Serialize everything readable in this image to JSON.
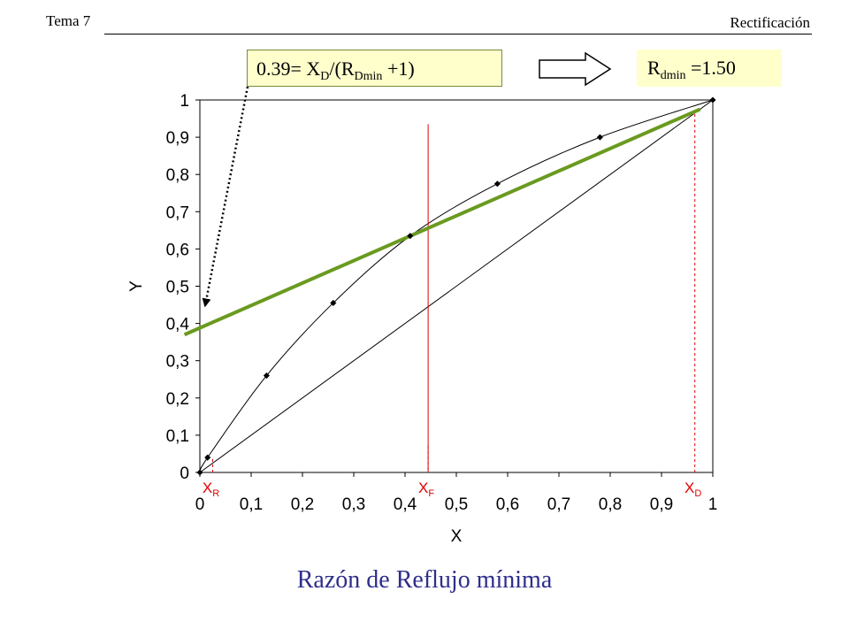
{
  "header": {
    "topic": "Tema 7",
    "section": "Rectificación"
  },
  "formula": {
    "prefix": "0.39= X",
    "sub1": "D",
    "mid": "/(R",
    "sub2": "Dmin",
    "suffix": " +1)"
  },
  "result": {
    "prefix": "R",
    "sub": "dmin",
    "suffix": " =1.50"
  },
  "colors": {
    "operating_line": "#6a9a1f",
    "markers": "#e00000",
    "curve": "#000000",
    "box_fill": "#ffffcc",
    "title": "#2e2e8c"
  },
  "chart_data": {
    "type": "line",
    "title": "Razón de Reflujo mínima",
    "xlabel": "X",
    "ylabel": "Y",
    "xlim": [
      0,
      1
    ],
    "ylim": [
      0,
      1
    ],
    "x_ticks": [
      "0",
      "0,1",
      "0,2",
      "0,3",
      "0,4",
      "0,5",
      "0,6",
      "0,7",
      "0,8",
      "0,9",
      "1"
    ],
    "y_ticks": [
      "0",
      "0,1",
      "0,2",
      "0,3",
      "0,4",
      "0,5",
      "0,6",
      "0,7",
      "0,8",
      "0,9",
      "1"
    ],
    "equilibrium_points": [
      {
        "x": 0,
        "y": 0
      },
      {
        "x": 0.015,
        "y": 0.04
      },
      {
        "x": 0.13,
        "y": 0.26
      },
      {
        "x": 0.26,
        "y": 0.455
      },
      {
        "x": 0.41,
        "y": 0.635
      },
      {
        "x": 0.58,
        "y": 0.775
      },
      {
        "x": 0.78,
        "y": 0.9
      },
      {
        "x": 1,
        "y": 1
      }
    ],
    "diagonal": [
      [
        0,
        0
      ],
      [
        1,
        1
      ]
    ],
    "operating_line": [
      [
        -0.03,
        0.37
      ],
      [
        0.975,
        0.975
      ]
    ],
    "markers": [
      {
        "name": "X",
        "sub": "R",
        "x": 0.025,
        "y_top": 0.04
      },
      {
        "name": "X",
        "sub": "F",
        "x": 0.445,
        "y_top": 0.935
      },
      {
        "name": "X",
        "sub": "D",
        "x": 0.965,
        "y_top": 0.965
      }
    ],
    "arrow_target": {
      "x": 0.0,
      "y": 0.41
    }
  }
}
